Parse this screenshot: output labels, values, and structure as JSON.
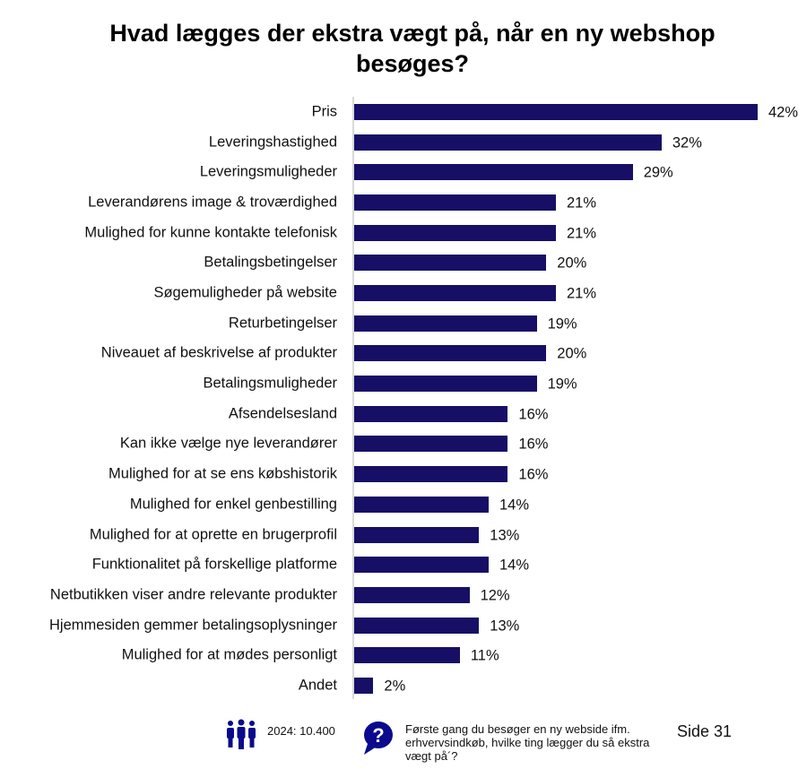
{
  "chart_data": {
    "type": "bar",
    "orientation": "horizontal",
    "title": "Hvad lægges der ekstra vægt på, når en ny webshop besøges?",
    "categories": [
      "Pris",
      "Leveringshastighed",
      "Leveringsmuligheder",
      "Leverandørens image & troværdighed",
      "Mulighed for kunne kontakte telefonisk",
      "Betalingsbetingelser",
      "Søgemuligheder på website",
      "Returbetingelser",
      "Niveauet af beskrivelse af produkter",
      "Betalingsmuligheder",
      "Afsendelsesland",
      "Kan ikke vælge nye leverandører",
      "Mulighed for at se ens købshistorik",
      "Mulighed for enkel genbestilling",
      "Mulighed for at oprette en brugerprofil",
      "Funktionalitet på forskellige platforme",
      "Netbutikken viser andre relevante produkter",
      "Hjemmesiden gemmer betalingsoplysninger",
      "Mulighed for at mødes personligt",
      "Andet"
    ],
    "values": [
      42,
      32,
      29,
      21,
      21,
      20,
      21,
      19,
      20,
      19,
      16,
      16,
      16,
      14,
      13,
      14,
      12,
      13,
      11,
      2
    ],
    "value_suffix": "%",
    "xlim": [
      0,
      42
    ],
    "grid": false,
    "bar_color": "#170f66"
  },
  "footer": {
    "sample": "2024: 10.400",
    "question": "Første gang du besøger en ny webside ifm. erhvervsindkøb, hvilke ting lægger du så ekstra vægt på´?",
    "page": "Side 31",
    "icon_color": "#0a0a8c"
  }
}
